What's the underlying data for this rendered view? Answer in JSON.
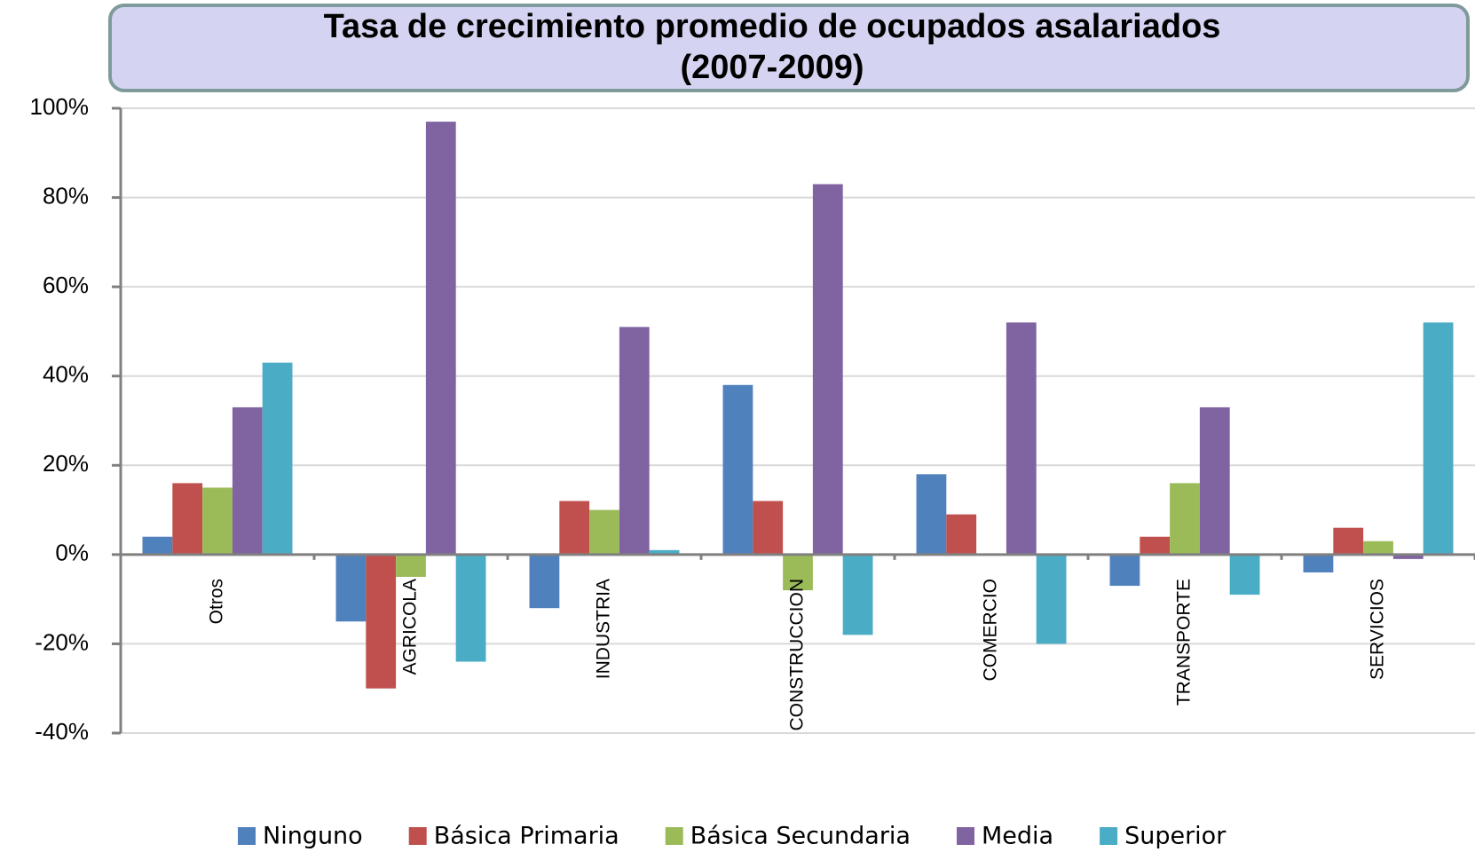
{
  "chart_data": {
    "type": "bar",
    "title": "Tasa de crecimiento promedio de ocupados asalariados",
    "subtitle": "(2007-2009)",
    "categories": [
      "Otros",
      "AGRICOLA",
      "INDUSTRIA",
      "CONSTRUCCION",
      "COMERCIO",
      "TRANSPORTE",
      "SERVICIOS"
    ],
    "series": [
      {
        "name": "Ninguno",
        "color": "#4f81bd",
        "values": [
          4,
          -15,
          -12,
          38,
          18,
          -7,
          -4
        ]
      },
      {
        "name": "Básica Primaria",
        "color": "#c0504d",
        "values": [
          16,
          -30,
          12,
          12,
          9,
          4,
          6
        ]
      },
      {
        "name": "Básica Secundaria",
        "color": "#9bbb59",
        "values": [
          15,
          -5,
          10,
          -8,
          0,
          16,
          3
        ]
      },
      {
        "name": "Media",
        "color": "#8064a2",
        "values": [
          33,
          97,
          51,
          83,
          52,
          33,
          -1
        ]
      },
      {
        "name": "Superior",
        "color": "#4bacc6",
        "values": [
          43,
          -24,
          1,
          -18,
          -20,
          -9,
          52
        ]
      }
    ],
    "ylim": [
      -40,
      100
    ],
    "yticks": [
      {
        "value": -40,
        "label": "-40%"
      },
      {
        "value": -20,
        "label": "-20%"
      },
      {
        "value": 0,
        "label": "0%"
      },
      {
        "value": 20,
        "label": "20%"
      },
      {
        "value": 40,
        "label": "40%"
      },
      {
        "value": 60,
        "label": "60%"
      },
      {
        "value": 80,
        "label": "80%"
      },
      {
        "value": 100,
        "label": "100%"
      }
    ],
    "grid": true,
    "legend": "bottom"
  }
}
